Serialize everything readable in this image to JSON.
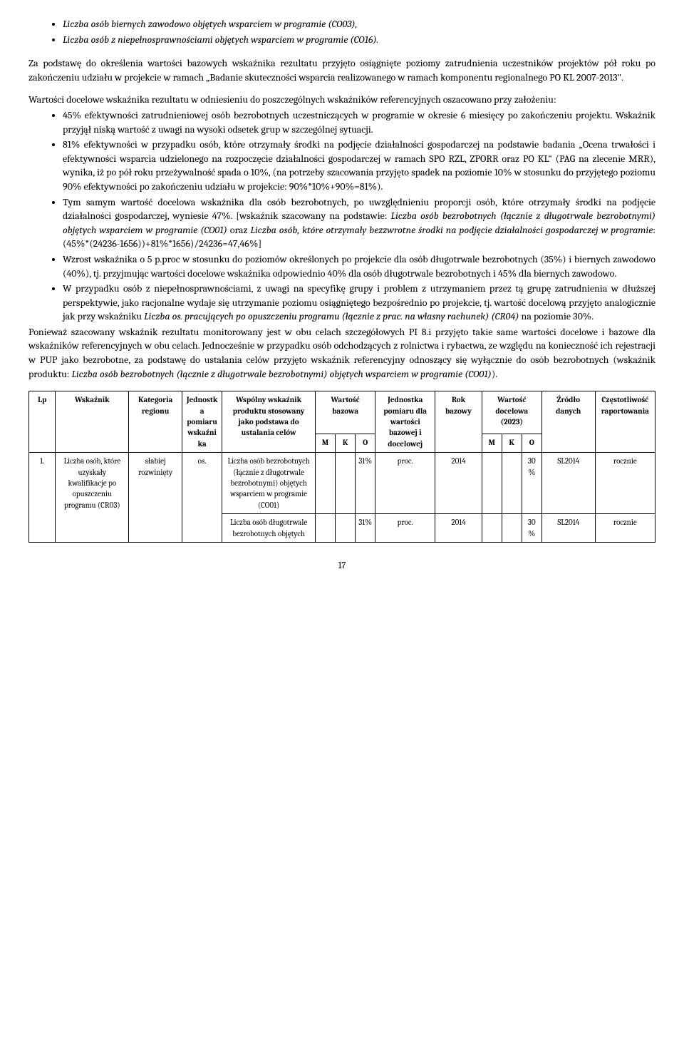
{
  "topBullets": [
    "Liczba osób biernych zawodowo objętych wsparciem w programie  (CO03),",
    "Liczba osób z niepełnosprawnościami objętych wsparciem w programie (CO16)."
  ],
  "para1": "Za podstawę do określenia wartości bazowych wskaźnika rezultatu przyjęto osiągnięte poziomy zatrudnienia uczestników projektów pół roku po zakończeniu udziału w projekcie w ramach „Badanie skuteczności wsparcia realizowanego w ramach komponentu regionalnego PO KL 2007-2013\".",
  "para2lead": "Wartości docelowe wskaźnika rezultatu w odniesieniu do poszczególnych wskaźników referencyjnych oszacowano przy założeniu:",
  "innerBullets": [
    "45% efektywności zatrudnieniowej osób bezrobotnych uczestniczących w programie w okresie 6 miesięcy po zakończeniu projektu. Wskaźnik przyjął niską wartość z uwagi na wysoki odsetek grup w szczególnej sytuacji.",
    "81% efektywności w przypadku osób, które otrzymały środki na podjęcie działalności gospodarczej na podstawie badania „Ocena trwałości i efektywności wsparcia udzielonego na rozpoczęcie działalności gospodarczej w ramach SPO RZL, ZPORR oraz PO KL\" (PAG na zlecenie MRR), wynika, iż po pół roku przeżywalność spada o 10%, (na potrzeby szacowania przyjęto spadek na poziomie 10% w stosunku do przyjętego poziomu 90% efektywności po zakończeniu udziału w projekcie: 90%*10%+90%=81%).",
    "Tym samym wartość docelowa wskaźnika dla osób bezrobotnych, po uwzględnieniu proporcji osób, które otrzymały środki na podjęcie działalności gospodarczej, wyniesie 47%. [wskaźnik szacowany na podstawie: <span class=\"italic\">Liczba osób bezrobotnych (łącznie z długotrwale bezrobotnymi) objętych wsparciem w programie (CO01)</span> oraz <span class=\"italic\">Liczba osób, które otrzymały bezzwrotne środki na podjęcie działalności gospodarczej w programie</span>: (45%*(24236-1656))+81%*1656)/24236=47,46%]",
    "Wzrost wskaźnika o 5 p.proc w stosunku do poziomów określonych po projekcie dla osób długotrwale bezrobotnych (35%) i biernych zawodowo (40%), tj. przyjmując wartości docelowe wskaźnika odpowiednio 40% dla osób długotrwale bezrobotnych i 45% dla biernych zawodowo.",
    "W przypadku osób z niepełnosprawnościami, z uwagi na specyfikę grupy i  problem z utrzymaniem przez tą grupę zatrudnienia w dłuższej perspektywie, jako racjonalne wydaje się utrzymanie poziomu osiągniętego bezpośrednio po projekcie, tj. wartość docelową przyjęto analogicznie jak przy wskaźniku <span class=\"italic\">Liczba os. pracujących po opuszczeniu programu (łącznie z prac. na własny rachunek) (CR04)</span> na poziomie 30%."
  ],
  "para3": "Ponieważ szacowany wskaźnik rezultatu monitorowany jest w obu celach szczegółowych PI 8.i przyjęto takie same wartości docelowe i bazowe dla wskaźników referencyjnych w obu celach. Jednocześnie w przypadku osób odchodzących z rolnictwa i rybactwa, ze względu na konieczność ich rejestracji w PUP jako bezrobotne, za podstawę do ustalania celów przyjęto wskaźnik referencyjny odnoszący się wyłącznie do osób bezrobotnych (wskaźnik produktu: <span class=\"italic\">Liczba osób bezrobotnych (łącznie z długotrwale bezrobotnymi) objętych wsparciem w programie (CO01)</span>).",
  "table": {
    "headers": [
      "Lp",
      "Wskaźnik",
      "Kategoria regionu",
      "Jednostka pomiaru wskaźnika",
      "Wspólny wskaźnik produktu stosowany jako podstawa do ustalania celów",
      "Wartość bazowa",
      "Jednostka pomiaru dla wartości bazowej i docelowej",
      "Rok bazowy",
      "Wartość docelowa (2023)",
      "Źródło danych",
      "Częstotliwość raportowania"
    ],
    "mko": [
      "M",
      "K",
      "O"
    ],
    "r1": {
      "lp": "1.",
      "wsk": "Liczba osób, które uzyskały kwalifikacje po opuszczeniu programu (CR03)",
      "kat": "słabiej rozwinięty",
      "jedn": "os.",
      "prod1": "Liczba osób bezrobotnych (łącznie z długotrwale bezrobotnymi) objętych wsparciem w programie (CO01)",
      "prod2": "Liczba osób długotrwale bezrobotnych objętych",
      "baz1": "31%",
      "baz2": "31%",
      "jp1": "proc.",
      "jp2": "proc.",
      "rok1": "2014",
      "rok2": "2014",
      "doc1": "30%",
      "doc2": "30%",
      "src1": "SL2014",
      "src2": "SL2014",
      "freq1": "rocznie",
      "freq2": "rocznie"
    }
  },
  "pageNumber": "17"
}
